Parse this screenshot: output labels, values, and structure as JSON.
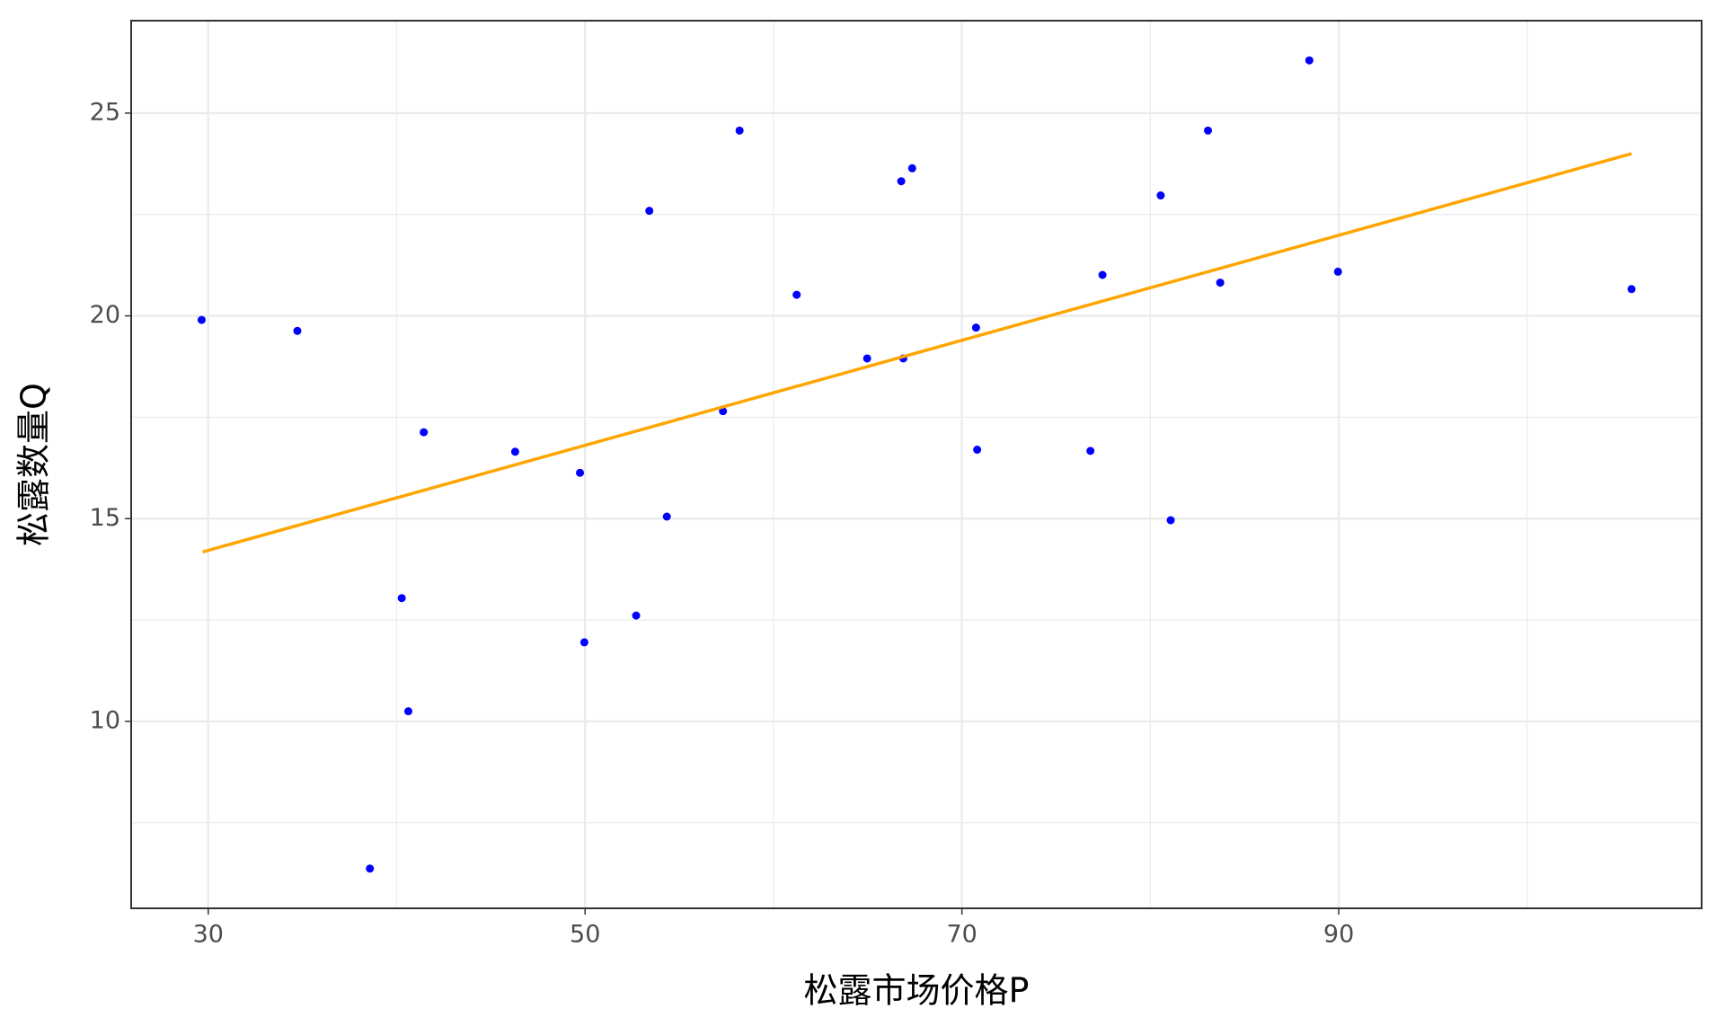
{
  "chart_data": {
    "type": "scatter",
    "xlabel": "松露市场价格P",
    "ylabel": "松露数量Q",
    "xlim": [
      25.91,
      109.26
    ],
    "ylim": [
      5.39,
      27.28
    ],
    "xticks": [
      30,
      50,
      70,
      90
    ],
    "yticks": [
      10,
      15,
      20,
      25
    ],
    "grid": true,
    "series": [
      {
        "color": "#0000ff",
        "x": [
          29.65,
          34.73,
          38.58,
          40.27,
          40.62,
          41.44,
          46.29,
          49.73,
          49.96,
          52.71,
          53.41,
          54.34,
          57.32,
          58.2,
          61.23,
          64.97,
          66.78,
          66.89,
          67.36,
          70.75,
          70.81,
          76.82,
          77.46,
          80.55,
          81.08,
          83.06,
          83.71,
          88.44,
          89.96,
          105.54
        ],
        "values": [
          19.9,
          19.63,
          6.37,
          13.04,
          10.25,
          17.13,
          16.65,
          16.13,
          11.95,
          12.61,
          22.59,
          15.05,
          17.65,
          24.57,
          20.52,
          18.95,
          23.32,
          18.95,
          23.64,
          19.71,
          16.7,
          16.67,
          21.01,
          22.97,
          14.96,
          24.57,
          20.82,
          26.3,
          21.09,
          20.66
        ]
      }
    ],
    "trend_line": {
      "color": "#ffa500",
      "x": [
        29.71,
        105.54
      ],
      "values": [
        14.18,
        24.0
      ]
    }
  }
}
